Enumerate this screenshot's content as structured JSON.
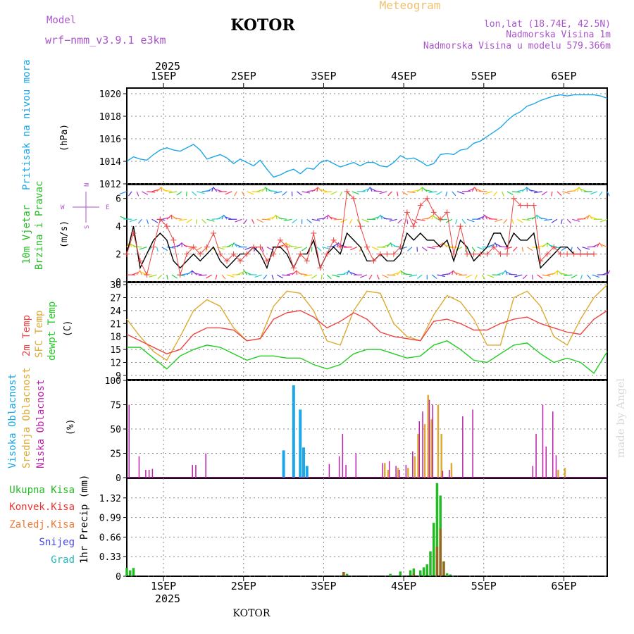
{
  "header": {
    "model_label": "Model",
    "model_name": "wrf−nmm_v3.9.1  e3km",
    "station": "KOTOR",
    "title": "Meteogram",
    "lonlat": "lon,lat (18.74E, 42.5N)",
    "altitude": "Nadmorska Visina 1m",
    "model_altitude": "Nadmorska Visina u modelu 579.366m"
  },
  "colors": {
    "pressure": "#1ca7e8",
    "wind_label": "#22bb22",
    "unit": "#000000",
    "temp2m": "#ee4444",
    "tsfc": "#ddaa33",
    "dewpt": "#22cc22",
    "cloud_high": "#1ca7e8",
    "cloud_mid": "#ddaa33",
    "cloud_low": "#bb22aa",
    "precip_total": "#22bb22",
    "precip_conv": "#ee3333",
    "precip_frz": "#ee7733",
    "snow": "#4444ee",
    "graupel": "#22bbbb",
    "title_mode": "#aa55cc",
    "meteogram": "#f0c070"
  },
  "xaxis": {
    "year": "2025",
    "days": [
      "1SEP",
      "2SEP",
      "3SEP",
      "4SEP",
      "5SEP",
      "6SEP"
    ],
    "footer_station": "KOTOR"
  },
  "watermark": "made by Angel",
  "panels": {
    "pressure": {
      "label": "Pritisak na nivou mora",
      "unit": "(hPa)",
      "ticks": [
        "1012",
        "1014",
        "1016",
        "1018",
        "1020"
      ]
    },
    "wind": {
      "label1": "10m Vjetar",
      "label2": "Brzina i Pravac",
      "unit": "(m/s)",
      "ticks": [
        "0",
        "2",
        "4",
        "6"
      ],
      "compass": {
        "n": "N",
        "s": "S",
        "e": "E",
        "w": "W"
      }
    },
    "temp": {
      "label_t2m": "2m Temp",
      "label_tsfc": "SFC Temp",
      "label_dew": "dewpt Temp",
      "unit": "(C)",
      "ticks": [
        "9",
        "12",
        "15",
        "18",
        "21",
        "24",
        "27",
        "30"
      ]
    },
    "cloud": {
      "label_high": "Visoka Oblacnost",
      "label_mid": "Srednja Oblacnost",
      "label_low": "Niska Oblacnost",
      "unit": "(%)",
      "ticks": [
        "0",
        "25",
        "50",
        "75",
        "100"
      ]
    },
    "precip": {
      "unit": "1hr Precip (mm)",
      "ticks": [
        "0",
        "0.33",
        "0.66",
        "0.99",
        "1.32"
      ],
      "legend": [
        "Ukupna Kisa",
        "Konvek.Kisa",
        "Zaledj.Kisa",
        "Snijeg",
        "Grad"
      ]
    }
  },
  "chart_data": {
    "type": "line",
    "x_unit": "hours since 2025-08-31 13:00 UTC",
    "x_range": [
      0,
      144
    ],
    "day_marks_hours": [
      11,
      35,
      59,
      83,
      107,
      131
    ],
    "pressure": {
      "ylim": [
        1012,
        1020.5
      ],
      "x": [
        0,
        2,
        4,
        6,
        8,
        10,
        12,
        14,
        16,
        18,
        20,
        22,
        24,
        26,
        28,
        30,
        32,
        34,
        36,
        38,
        40,
        42,
        44,
        46,
        48,
        50,
        52,
        54,
        56,
        58,
        60,
        62,
        64,
        66,
        68,
        70,
        72,
        74,
        76,
        78,
        80,
        82,
        84,
        86,
        88,
        90,
        92,
        94,
        96,
        98,
        100,
        102,
        104,
        106,
        108,
        110,
        112,
        114,
        116,
        118,
        120,
        122,
        124,
        126,
        128,
        130,
        132,
        134,
        136,
        138,
        140,
        142,
        144
      ],
      "y": [
        1014.0,
        1014.4,
        1014.2,
        1014.1,
        1014.6,
        1015.0,
        1015.2,
        1015.0,
        1014.9,
        1015.2,
        1015.5,
        1015.0,
        1014.2,
        1014.4,
        1014.6,
        1014.3,
        1013.8,
        1014.2,
        1013.9,
        1013.6,
        1014.1,
        1013.3,
        1012.6,
        1012.8,
        1013.1,
        1013.3,
        1012.9,
        1013.4,
        1013.3,
        1013.9,
        1014.1,
        1013.8,
        1013.5,
        1013.7,
        1013.9,
        1013.6,
        1013.9,
        1013.9,
        1013.6,
        1013.5,
        1013.9,
        1014.5,
        1014.2,
        1014.3,
        1014.0,
        1013.6,
        1013.8,
        1014.6,
        1014.7,
        1014.6,
        1015.0,
        1015.1,
        1015.6,
        1015.8,
        1016.2,
        1016.6,
        1017.0,
        1017.6,
        1018.1,
        1018.4,
        1018.9,
        1019.1,
        1019.4,
        1019.6,
        1019.8,
        1019.9,
        1019.8,
        1019.9,
        1019.9,
        1019.9,
        1019.9,
        1019.8,
        1019.6
      ]
    },
    "wind_speed": {
      "ylim": [
        0,
        7
      ],
      "x": [
        0,
        2,
        4,
        6,
        8,
        10,
        12,
        14,
        16,
        18,
        20,
        22,
        24,
        26,
        28,
        30,
        32,
        34,
        36,
        38,
        40,
        42,
        44,
        46,
        48,
        50,
        52,
        54,
        56,
        58,
        60,
        62,
        64,
        66,
        68,
        70,
        72,
        74,
        76,
        78,
        80,
        82,
        84,
        86,
        88,
        90,
        92,
        94,
        96,
        98,
        100,
        102,
        104,
        106,
        108,
        110,
        112,
        114,
        116,
        118,
        120,
        122,
        124,
        126,
        128,
        130,
        132,
        134,
        136,
        138,
        140,
        142,
        144
      ],
      "gust": [
        2,
        3.5,
        1.5,
        0.5,
        2.5,
        4.5,
        4,
        3,
        0.5,
        2,
        2.5,
        2,
        2.5,
        3.5,
        2,
        1.5,
        2,
        1.5,
        2,
        2.5,
        2.5,
        1.5,
        2,
        3,
        2.5,
        1,
        2,
        1.5,
        3.5,
        1,
        2,
        3,
        2.5,
        6.5,
        6,
        4,
        2.5,
        1.5,
        2,
        2,
        2,
        2.5,
        5,
        4,
        5.5,
        6,
        5,
        4.5,
        5,
        2,
        4,
        2,
        2,
        2,
        2,
        2.5,
        2,
        2,
        6,
        5.5,
        5.5,
        5.5,
        1.5,
        2,
        2.5,
        2,
        2,
        2,
        2,
        2,
        2
      ],
      "sustained": [
        2,
        4,
        1,
        2,
        3,
        3.5,
        3,
        1.5,
        1,
        1.5,
        2,
        1.5,
        2,
        2.5,
        1.5,
        1,
        1.5,
        2,
        2,
        2.5,
        2,
        1,
        2.5,
        2.5,
        2,
        1,
        2,
        2,
        3,
        1,
        2,
        2.5,
        2,
        3.5,
        3,
        2.5,
        1.5,
        1.5,
        2,
        1.5,
        1.5,
        2,
        3.5,
        3,
        3.5,
        3,
        3,
        2.5,
        3,
        1.5,
        3,
        2.5,
        1.5,
        2,
        2.5,
        3.5,
        3.5,
        2.5,
        3.5,
        3,
        3,
        3.5,
        1,
        1.5,
        2,
        2.5,
        2.5,
        2,
        2,
        2,
        2
      ]
    },
    "temperature": {
      "ylim": [
        8,
        30.5
      ],
      "x": [
        0,
        4,
        8,
        12,
        16,
        20,
        24,
        28,
        32,
        36,
        40,
        44,
        48,
        52,
        56,
        60,
        64,
        68,
        72,
        76,
        80,
        84,
        88,
        92,
        96,
        100,
        104,
        108,
        112,
        116,
        120,
        124,
        128,
        132,
        136,
        140,
        144
      ],
      "t2m": [
        18.5,
        17,
        15.5,
        14,
        15,
        18.5,
        20,
        20,
        19.5,
        17,
        17.5,
        22,
        23.5,
        24,
        22.5,
        20,
        21.5,
        23.5,
        22,
        19,
        18,
        17.5,
        17,
        21.5,
        22,
        21,
        19.5,
        19.5,
        21,
        22,
        22.5,
        21,
        20,
        19,
        18.5,
        22,
        24
      ],
      "tsfc": [
        22,
        18,
        14.5,
        12.5,
        18,
        24,
        26.5,
        25,
        20,
        17,
        17.5,
        25,
        28.5,
        28,
        24,
        17,
        16,
        24,
        28.5,
        28,
        21,
        18,
        17,
        23,
        27.5,
        26,
        22,
        16,
        16,
        27,
        28.5,
        25,
        18,
        16,
        22,
        27,
        30
      ],
      "dewpt": [
        15.5,
        15.5,
        13,
        10.5,
        13.5,
        15,
        16,
        15.5,
        14,
        12.5,
        13.5,
        13.5,
        13,
        13,
        11.5,
        10.5,
        11.5,
        14,
        15,
        15,
        14,
        13,
        13.5,
        16,
        17,
        15,
        12.5,
        12,
        14,
        16,
        16.5,
        14,
        12,
        13,
        12,
        9.5,
        14.5
      ]
    },
    "cloud_cover": {
      "ylim": [
        0,
        100
      ],
      "high": [
        {
          "h": 47,
          "v": 28
        },
        {
          "h": 50,
          "v": 95
        },
        {
          "h": 52,
          "v": 70
        },
        {
          "h": 53,
          "v": 31
        },
        {
          "h": 54,
          "v": 12
        }
      ],
      "mid": [
        {
          "h": 77,
          "v": 15
        },
        {
          "h": 78,
          "v": 8
        },
        {
          "h": 81,
          "v": 10
        },
        {
          "h": 84,
          "v": 10
        },
        {
          "h": 86,
          "v": 22
        },
        {
          "h": 87,
          "v": 45
        },
        {
          "h": 89,
          "v": 55
        },
        {
          "h": 90,
          "v": 85
        },
        {
          "h": 91,
          "v": 60
        },
        {
          "h": 93,
          "v": 75
        },
        {
          "h": 94,
          "v": 45
        },
        {
          "h": 97,
          "v": 15
        },
        {
          "h": 129,
          "v": 8
        },
        {
          "h": 131,
          "v": 10
        }
      ],
      "low": [
        {
          "h": 1,
          "v": 75
        },
        {
          "h": 4,
          "v": 22
        },
        {
          "h": 6,
          "v": 8
        },
        {
          "h": 7,
          "v": 8
        },
        {
          "h": 8,
          "v": 9
        },
        {
          "h": 20,
          "v": 13
        },
        {
          "h": 21,
          "v": 13
        },
        {
          "h": 24,
          "v": 25
        },
        {
          "h": 61,
          "v": 14
        },
        {
          "h": 64,
          "v": 22
        },
        {
          "h": 65,
          "v": 45
        },
        {
          "h": 66,
          "v": 13
        },
        {
          "h": 69,
          "v": 25
        },
        {
          "h": 77,
          "v": 15
        },
        {
          "h": 79,
          "v": 17
        },
        {
          "h": 81,
          "v": 12
        },
        {
          "h": 82,
          "v": 8
        },
        {
          "h": 84,
          "v": 13
        },
        {
          "h": 86,
          "v": 27
        },
        {
          "h": 88,
          "v": 58
        },
        {
          "h": 89,
          "v": 68
        },
        {
          "h": 91,
          "v": 80
        },
        {
          "h": 92,
          "v": 75
        },
        {
          "h": 95,
          "v": 7
        },
        {
          "h": 97,
          "v": 8
        },
        {
          "h": 101,
          "v": 63
        },
        {
          "h": 104,
          "v": 70
        },
        {
          "h": 122,
          "v": 12
        },
        {
          "h": 123,
          "v": 45
        },
        {
          "h": 125,
          "v": 75
        },
        {
          "h": 126,
          "v": 32
        },
        {
          "h": 128,
          "v": 68
        },
        {
          "h": 129,
          "v": 23
        }
      ]
    },
    "precipitation": {
      "ylim": [
        0,
        1.65
      ],
      "total": [
        {
          "h": 0,
          "v": 0.14
        },
        {
          "h": 1,
          "v": 0.1
        },
        {
          "h": 2,
          "v": 0.14
        },
        {
          "h": 65,
          "v": 0.07
        },
        {
          "h": 66,
          "v": 0.04
        },
        {
          "h": 79,
          "v": 0.04
        },
        {
          "h": 82,
          "v": 0.08
        },
        {
          "h": 85,
          "v": 0.1
        },
        {
          "h": 86,
          "v": 0.13
        },
        {
          "h": 88,
          "v": 0.1
        },
        {
          "h": 89,
          "v": 0.15
        },
        {
          "h": 90,
          "v": 0.2
        },
        {
          "h": 91,
          "v": 0.42
        },
        {
          "h": 92,
          "v": 0.9
        },
        {
          "h": 93,
          "v": 1.57
        },
        {
          "h": 94,
          "v": 1.36
        },
        {
          "h": 95,
          "v": 0.25
        },
        {
          "h": 96,
          "v": 0.05
        },
        {
          "h": 97,
          "v": 0.03
        }
      ],
      "convective": [
        {
          "h": 65,
          "v": 0.07
        },
        {
          "h": 86,
          "v": 0.04
        },
        {
          "h": 93,
          "v": 0.5
        },
        {
          "h": 94,
          "v": 0.8
        },
        {
          "h": 95,
          "v": 0.25
        }
      ]
    }
  }
}
